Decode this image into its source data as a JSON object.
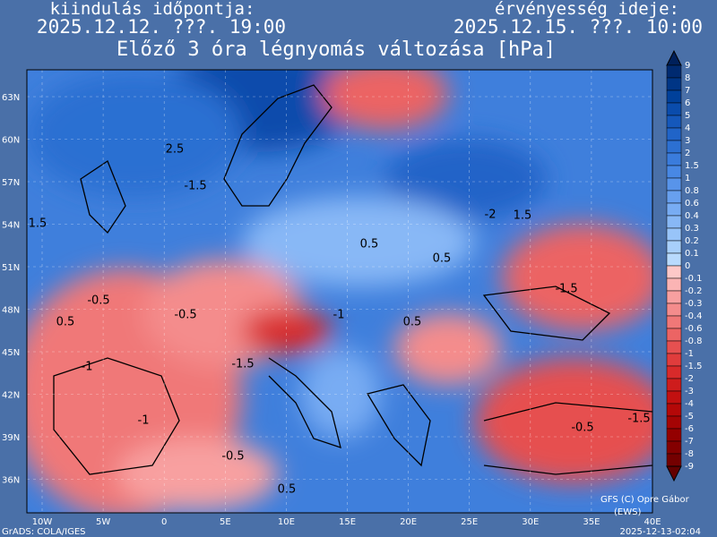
{
  "header": {
    "left_label": "kiindulás időpontja:",
    "left_time": "2025.12.12. ???. 19:00",
    "right_label": "érvényesség ideje:",
    "right_time": "2025.12.15. ???. 10:00",
    "title": "Előző 3 óra légnyomás változása [hPa]"
  },
  "map": {
    "lat_labels": [
      "63N",
      "60N",
      "57N",
      "54N",
      "51N",
      "48N",
      "45N",
      "42N",
      "39N",
      "36N"
    ],
    "lon_labels": [
      "10W",
      "5W",
      "0",
      "5E",
      "10E",
      "15E",
      "20E",
      "25E",
      "30E",
      "35E",
      "40E"
    ],
    "contour_labels": [
      "2.5",
      "-1.5",
      "1.5",
      "0.5",
      "0.5",
      "-0.5",
      "0.5",
      "-0.5",
      "-1.5",
      "-1",
      "0.5",
      "-1.5",
      "-0.5",
      "-1.5",
      "-0.5",
      "0.5",
      "-2",
      "1.5",
      "-1",
      "-1"
    ]
  },
  "legend": {
    "labels": [
      "9",
      "8",
      "7",
      "6",
      "5",
      "4",
      "3",
      "2",
      "1.5",
      "1",
      "0.8",
      "0.6",
      "0.4",
      "0.3",
      "0.2",
      "0.1",
      "0",
      "-0.1",
      "-0.2",
      "-0.3",
      "-0.4",
      "-0.6",
      "-0.8",
      "-1",
      "-1.5",
      "-2",
      "-3",
      "-4",
      "-5",
      "-6",
      "-7",
      "-8",
      "-9"
    ],
    "colors": [
      "#00205a",
      "#002a70",
      "#003585",
      "#00409a",
      "#0a4cac",
      "#1558bb",
      "#2064c8",
      "#2c70d2",
      "#3a7cdc",
      "#4888e4",
      "#5894ea",
      "#68a0ef",
      "#78acf3",
      "#88b8f6",
      "#98c4f9",
      "#a8cffb",
      "#b8dafd",
      "#fdc8c8",
      "#fbb4b4",
      "#f8a0a0",
      "#f48c8c",
      "#f07878",
      "#ec6464",
      "#e65050",
      "#e03c3c",
      "#d82a2a",
      "#ce1c1c",
      "#c21010",
      "#b40808",
      "#a40404",
      "#940000",
      "#840000",
      "#740000",
      "#640000"
    ]
  },
  "footer": {
    "software": "GrADS: COLA/IGES",
    "credit": "GFS (C) Opre Gábor",
    "source": "(EWS)",
    "timestamp": "2025-12-13-02:04"
  }
}
